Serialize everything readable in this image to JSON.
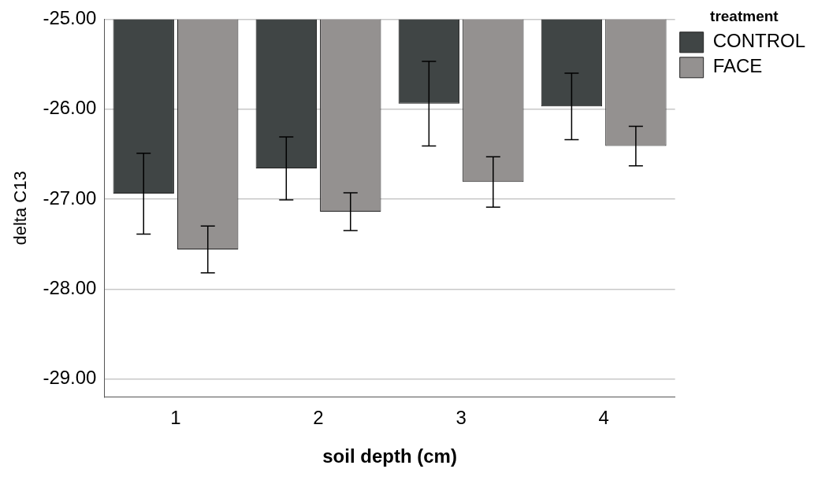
{
  "chart_data": {
    "type": "bar",
    "xlabel": "soil depth (cm)",
    "ylabel": "delta C13",
    "legend_title": "treatment",
    "categories": [
      "1",
      "2",
      "3",
      "4"
    ],
    "series": [
      {
        "name": "CONTROL",
        "color": "#404545",
        "values": [
          -26.94,
          -26.66,
          -25.94,
          -25.97
        ],
        "errors": [
          0.45,
          0.35,
          0.47,
          0.37
        ]
      },
      {
        "name": "FACE",
        "color": "#949190",
        "values": [
          -27.56,
          -27.14,
          -26.81,
          -26.41
        ],
        "errors": [
          0.26,
          0.21,
          0.28,
          0.22
        ]
      }
    ],
    "ylim": [
      -29.2,
      -25
    ],
    "yticks": [
      {
        "value": -29,
        "label": "-29.00"
      },
      {
        "value": -28,
        "label": "-28.00"
      },
      {
        "value": -27,
        "label": "-27.00"
      },
      {
        "value": -26,
        "label": "-26.00"
      },
      {
        "value": -25,
        "label": "-25.00"
      }
    ],
    "grid": "y",
    "legend": "top right"
  }
}
